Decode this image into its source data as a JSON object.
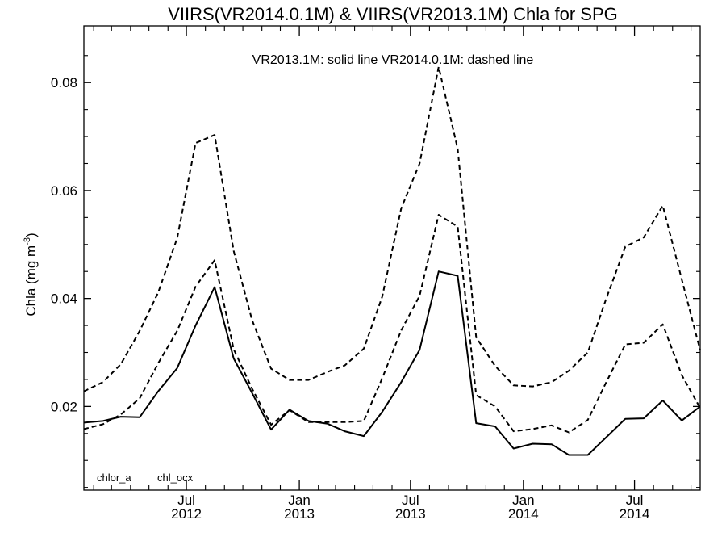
{
  "chart_data": {
    "type": "line",
    "title": "VIIRS(VR2014.0.1M) & VIIRS(VR2013.1M)  Chla for SPG",
    "ylabel": "Chla (mg m",
    "ylabel_superscript": "-3",
    "ylabel_close": ")",
    "annotation": "VR2013.1M: solid line   VR2014.0.1M: dashed line",
    "bottom_labels": [
      "chlor_a",
      "chl_ocx"
    ],
    "ylim": [
      0.0045,
      0.0905
    ],
    "yticks": [
      {
        "value": 0.02,
        "label": "0.02"
      },
      {
        "value": 0.04,
        "label": "0.04"
      },
      {
        "value": 0.06,
        "label": "0.06"
      },
      {
        "value": 0.08,
        "label": "0.08"
      }
    ],
    "xlim": [
      "2012-01-16",
      "2014-10-16"
    ],
    "xticks": [
      {
        "date": "2012-07-01",
        "month": "Jul",
        "year": "2012"
      },
      {
        "date": "2013-01-01",
        "month": "Jan",
        "year": "2013"
      },
      {
        "date": "2013-07-01",
        "month": "Jul",
        "year": "2013"
      },
      {
        "date": "2014-01-01",
        "month": "Jan",
        "year": "2014"
      },
      {
        "date": "2014-07-01",
        "month": "Jul",
        "year": "2014"
      }
    ],
    "x": [
      "2012-01-16",
      "2012-02-16",
      "2012-03-16",
      "2012-04-16",
      "2012-05-16",
      "2012-06-16",
      "2012-07-16",
      "2012-08-16",
      "2012-09-16",
      "2012-10-16",
      "2012-11-16",
      "2012-12-16",
      "2013-01-16",
      "2013-02-16",
      "2013-03-16",
      "2013-04-16",
      "2013-05-16",
      "2013-06-16",
      "2013-07-16",
      "2013-08-16",
      "2013-09-16",
      "2013-10-16",
      "2013-11-16",
      "2013-12-16",
      "2014-01-16",
      "2014-02-16",
      "2014-03-16",
      "2014-04-16",
      "2014-05-16",
      "2014-06-16",
      "2014-07-16",
      "2014-08-16",
      "2014-09-16",
      "2014-10-16"
    ],
    "series": [
      {
        "style": "solid",
        "values": [
          0.017,
          0.0173,
          0.0181,
          0.018,
          0.0228,
          0.0271,
          0.035,
          0.0421,
          0.0289,
          0.0225,
          0.0157,
          0.0194,
          0.0173,
          0.0168,
          0.0154,
          0.0145,
          0.019,
          0.0245,
          0.0305,
          0.045,
          0.0442,
          0.0169,
          0.0163,
          0.0122,
          0.0131,
          0.013,
          0.011,
          0.011,
          0.0143,
          0.0177,
          0.0178,
          0.0211,
          0.0174,
          0.02
        ]
      },
      {
        "style": "dashed",
        "values": [
          0.0158,
          0.0167,
          0.0185,
          0.0215,
          0.028,
          0.034,
          0.0422,
          0.0471,
          0.0306,
          0.0233,
          0.0166,
          0.0193,
          0.0171,
          0.0171,
          0.0171,
          0.0173,
          0.0252,
          0.0341,
          0.0405,
          0.0555,
          0.0533,
          0.0221,
          0.02,
          0.0154,
          0.0158,
          0.0165,
          0.0152,
          0.0175,
          0.0245,
          0.0315,
          0.0318,
          0.0352,
          0.0258,
          0.0197
        ]
      },
      {
        "style": "dashed",
        "values": [
          0.0228,
          0.0245,
          0.0278,
          0.034,
          0.0411,
          0.0512,
          0.0688,
          0.0703,
          0.0488,
          0.036,
          0.027,
          0.0249,
          0.0249,
          0.0264,
          0.0276,
          0.0307,
          0.0403,
          0.0567,
          0.065,
          0.0829,
          0.0677,
          0.0328,
          0.0275,
          0.0239,
          0.0237,
          0.0245,
          0.0266,
          0.03,
          0.04,
          0.0496,
          0.0513,
          0.0572,
          0.0435,
          0.0304
        ]
      }
    ]
  }
}
